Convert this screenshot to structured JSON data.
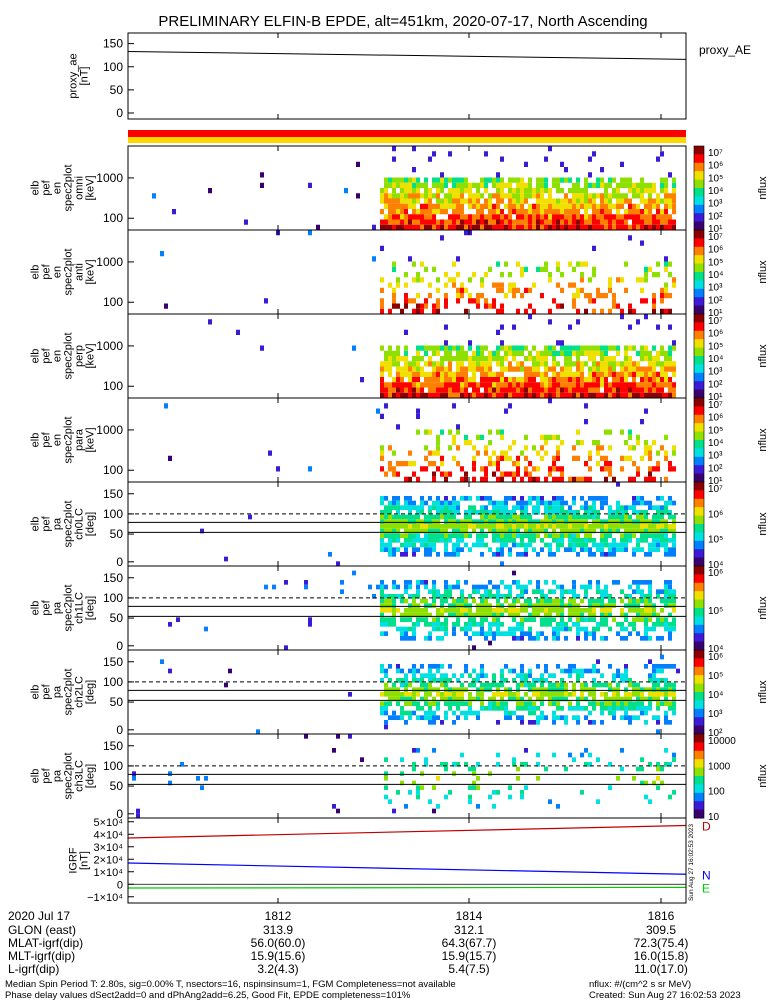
{
  "title": "PRELIMINARY ELFIN-B EPDE, alt=451km, 2020-07-17, North Ascending",
  "colors": {
    "red": "#ff0000",
    "yellow": "#ffd700",
    "trace_red": "#c00000",
    "trace_blue": "#0000ff",
    "trace_green": "#00cc00",
    "colorbar": [
      "#ffffff",
      "#3a0070",
      "#3b1bd6",
      "#0080ff",
      "#00e0e0",
      "#00e08a",
      "#8fe000",
      "#f0e000",
      "#ff8000",
      "#ff0000",
      "#8b0000"
    ]
  },
  "panels": [
    {
      "key": "proxy_ae",
      "type": "line",
      "ylabel": [
        "proxy_ae",
        "[nT]"
      ],
      "right_label": "proxy_AE",
      "yticks": [
        "150",
        "100",
        "50",
        "0"
      ]
    },
    {
      "key": "en_omni",
      "type": "spectrogram",
      "kind": "energy",
      "ylabel": [
        "elb",
        "pef",
        "en",
        "spec2plot",
        "omni",
        "[keV]"
      ],
      "yticks": [
        "1000",
        "100"
      ],
      "cbar_ticks": [
        "10⁷",
        "10⁶",
        "10⁵",
        "10⁴",
        "10³",
        "10²",
        "10¹"
      ],
      "cbar_label": "nflux",
      "density": "high"
    },
    {
      "key": "en_anti",
      "type": "spectrogram",
      "kind": "energy",
      "ylabel": [
        "elb",
        "pef",
        "en",
        "spec2plot",
        "anti",
        "[keV]"
      ],
      "yticks": [
        "1000",
        "100"
      ],
      "cbar_ticks": [
        "10⁷",
        "10⁶",
        "10⁵",
        "10⁴",
        "10³",
        "10²",
        "10¹"
      ],
      "cbar_label": "nflux",
      "density": "low"
    },
    {
      "key": "en_perp",
      "type": "spectrogram",
      "kind": "energy",
      "ylabel": [
        "elb",
        "pef",
        "en",
        "spec2plot",
        "perp",
        "[keV]"
      ],
      "yticks": [
        "1000",
        "100"
      ],
      "cbar_ticks": [
        "10⁷",
        "10⁶",
        "10⁵",
        "10⁴",
        "10³",
        "10²",
        "10¹"
      ],
      "cbar_label": "nflux",
      "density": "high"
    },
    {
      "key": "en_para",
      "type": "spectrogram",
      "kind": "energy",
      "ylabel": [
        "elb",
        "pef",
        "en",
        "spec2plot",
        "para",
        "[keV]"
      ],
      "yticks": [
        "1000",
        "100"
      ],
      "cbar_ticks": [
        "10⁷",
        "10⁶",
        "10⁵",
        "10⁴",
        "10³",
        "10²",
        "10¹"
      ],
      "cbar_label": "nflux",
      "density": "low"
    },
    {
      "key": "pa_ch0",
      "type": "spectrogram",
      "kind": "pitch",
      "ylabel": [
        "elb",
        "pef",
        "pa",
        "spec2plot",
        "ch0LC",
        "[deg]"
      ],
      "yticks": [
        "150",
        "100",
        "50",
        "0"
      ],
      "cbar_ticks": [
        "10⁷",
        "10⁶",
        "10⁵",
        "10⁴"
      ],
      "cbar_label": "nflux",
      "density": "high"
    },
    {
      "key": "pa_ch1",
      "type": "spectrogram",
      "kind": "pitch",
      "ylabel": [
        "elb",
        "pef",
        "pa",
        "spec2plot",
        "ch1LC",
        "[deg]"
      ],
      "yticks": [
        "150",
        "100",
        "50",
        "0"
      ],
      "cbar_ticks": [
        "10⁶",
        "10⁵",
        "10⁴"
      ],
      "cbar_label": "nflux",
      "density": "med"
    },
    {
      "key": "pa_ch2",
      "type": "spectrogram",
      "kind": "pitch",
      "ylabel": [
        "elb",
        "pef",
        "pa",
        "spec2plot",
        "ch2LC",
        "[deg]"
      ],
      "yticks": [
        "150",
        "100",
        "50",
        "0"
      ],
      "cbar_ticks": [
        "10⁶",
        "10⁵",
        "10⁴",
        "10³",
        "10²"
      ],
      "cbar_label": "nflux",
      "density": "med"
    },
    {
      "key": "pa_ch3",
      "type": "spectrogram",
      "kind": "pitch",
      "ylabel": [
        "elb",
        "pef",
        "pa",
        "spec2plot",
        "ch3LC",
        "[deg]"
      ],
      "yticks": [
        "150",
        "100",
        "50",
        "0"
      ],
      "cbar_ticks": [
        "10000",
        "1000",
        "100",
        "10"
      ],
      "cbar_label": "nflux",
      "density": "sparse"
    },
    {
      "key": "igrf",
      "type": "line",
      "ylabel": [
        "IGRF",
        "[nT]"
      ],
      "yticks": [
        "5×10⁴",
        "4×10⁴",
        "3×10⁴",
        "2×10⁴",
        "1×10⁴",
        "0",
        "−1×10⁴"
      ],
      "legend": [
        "D",
        "N",
        "E"
      ],
      "stamp": "Sun Aug 27 16:02:53 2023"
    }
  ],
  "xaxis": {
    "ticks": [
      "1812",
      "1814",
      "1816"
    ],
    "rows": [
      {
        "label": "2020 Jul 17",
        "values": [
          "1812",
          "1814",
          "1816"
        ]
      },
      {
        "label": "GLON (east)",
        "values": [
          "313.9",
          "312.1",
          "309.5"
        ]
      },
      {
        "label": "MLAT-igrf(dip)",
        "values": [
          "56.0(60.0)",
          "64.3(67.7)",
          "72.3(75.4)"
        ]
      },
      {
        "label": "MLT-igrf(dip)",
        "values": [
          "15.9(15.6)",
          "15.9(15.7)",
          "16.0(15.8)"
        ]
      },
      {
        "label": "L-igrf(dip)",
        "values": [
          "3.2(4.3)",
          "5.4(7.5)",
          "11.0(17.0)"
        ]
      }
    ]
  },
  "footer": {
    "line1_left": "Median Spin Period T: 2.80s, sig=0.00% T, nsectors=16, nspinsinsum=1, FGM Completeness=not available",
    "line2_left": "Phase delay values dSect2add=0 and dPhAng2add=6.25, Good Fit, EPDE completeness=101%",
    "line1_right": "nflux: #/(cm^2 s sr MeV)",
    "line2_right": "Created: Sun Aug 27 16:02:53 2023"
  },
  "chart_data": {
    "type": "line",
    "title": "PRELIMINARY ELFIN-B EPDE, alt=451km, 2020-07-17, North Ascending",
    "x_label": "2020 Jul 17",
    "x_ticks": [
      "1812",
      "1814",
      "1816"
    ],
    "series": [
      {
        "name": "proxy_AE",
        "x": [
          "start",
          "end"
        ],
        "values": [
          133,
          116
        ],
        "ylim": [
          0,
          160
        ]
      },
      {
        "name": "D",
        "x": [
          "start",
          "end"
        ],
        "values": [
          37000,
          47000
        ],
        "ylim": [
          -15000,
          53000
        ]
      },
      {
        "name": "N",
        "x": [
          "start",
          "end"
        ],
        "values": [
          17000,
          8000
        ],
        "ylim": [
          -15000,
          53000
        ]
      },
      {
        "name": "E",
        "x": [
          "start",
          "end"
        ],
        "values": [
          -3000,
          -2500
        ],
        "ylim": [
          -15000,
          53000
        ]
      }
    ]
  }
}
